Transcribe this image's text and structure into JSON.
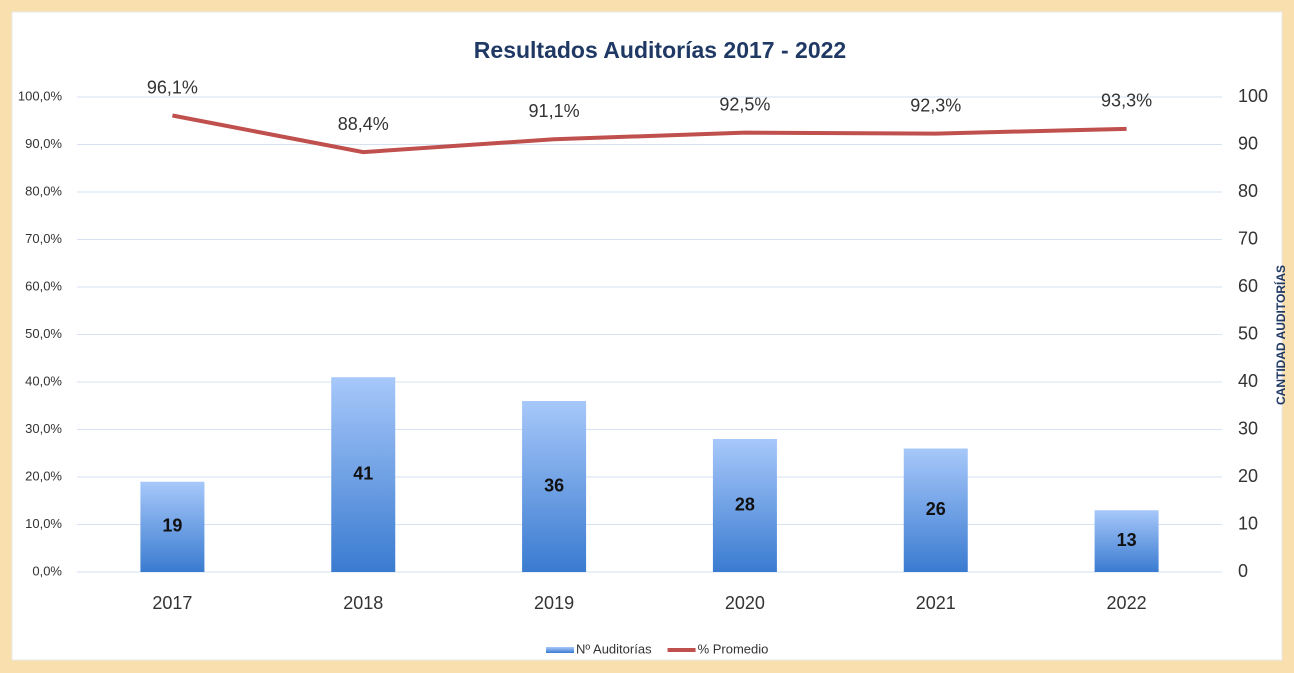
{
  "chart_data": {
    "type": "bar",
    "title": "Resultados Auditorías 2017 - 2022",
    "categories": [
      "2017",
      "2018",
      "2019",
      "2020",
      "2021",
      "2022"
    ],
    "series": [
      {
        "name": "Nº Auditorías",
        "type": "bar",
        "axis": "y2",
        "color": "#4a86d8",
        "values": [
          19,
          41,
          36,
          28,
          26,
          13
        ]
      },
      {
        "name": "% Promedio",
        "type": "line",
        "axis": "y",
        "color": "#c0504d",
        "values": [
          96.1,
          88.4,
          91.1,
          92.5,
          92.3,
          93.3
        ],
        "value_labels": [
          "96,1%",
          "88,4%",
          "91,1%",
          "92,5%",
          "92,3%",
          "93,3%"
        ]
      }
    ],
    "ylim": [
      0,
      100
    ],
    "yticks": [
      {
        "value": 0,
        "label": "0,0%"
      },
      {
        "value": 10,
        "label": "10,0%"
      },
      {
        "value": 20,
        "label": "20,0%"
      },
      {
        "value": 30,
        "label": "30,0%"
      },
      {
        "value": 40,
        "label": "40,0%"
      },
      {
        "value": 50,
        "label": "50,0%"
      },
      {
        "value": 60,
        "label": "60,0%"
      },
      {
        "value": 70,
        "label": "70,0%"
      },
      {
        "value": 80,
        "label": "80,0%"
      },
      {
        "value": 90,
        "label": "90,0%"
      },
      {
        "value": 100,
        "label": "100,0%"
      }
    ],
    "y2lim": [
      0,
      100
    ],
    "y2ticks": [
      0,
      10,
      20,
      30,
      40,
      50,
      60,
      70,
      80,
      90,
      100
    ],
    "y2label": "CANTIDAD AUDITORÍAS",
    "grid": true,
    "legend": "bottom"
  }
}
